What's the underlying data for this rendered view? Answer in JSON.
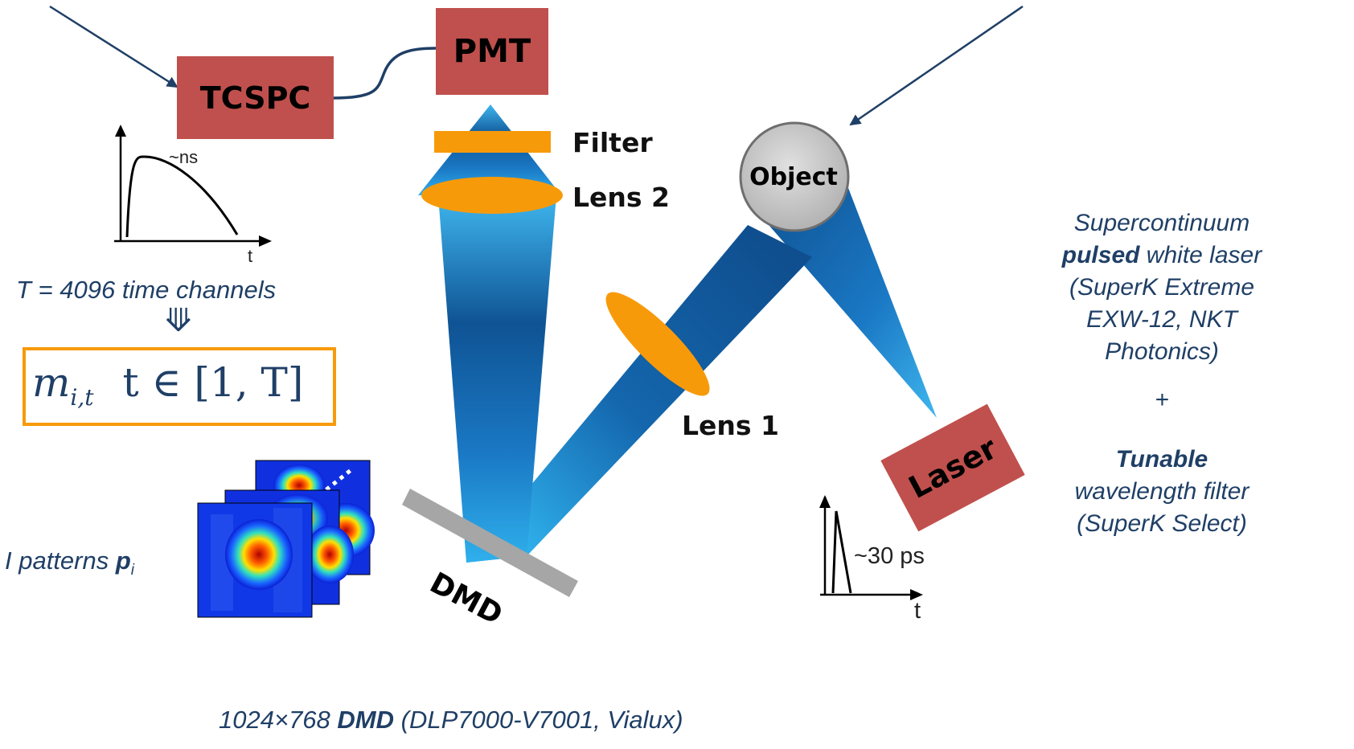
{
  "blocks": {
    "tcspc": "TCSPC",
    "pmt": "PMT",
    "object": "Object",
    "laser": "Laser",
    "dmd": "DMD"
  },
  "optics": {
    "filter": "Filter",
    "lens2": "Lens 2",
    "lens1": "Lens 1"
  },
  "detector_plot": {
    "peak_label": "~ns",
    "x_axis": "t"
  },
  "laser_plot": {
    "pulse_label": "~30 ps",
    "x_axis": "t"
  },
  "time_channels": "T = 4096 time channels",
  "arrow_symbol": "⟱",
  "measurement": {
    "m": "m",
    "sub": "i,t",
    "range": "t ∈ [1, T]"
  },
  "patterns": {
    "text": "I patterns ",
    "symbol": "p",
    "sub": "i"
  },
  "laser_desc": {
    "line1": "Supercontinuum",
    "line2_bold": "pulsed",
    "line2_rest": " white laser",
    "line3": "(SuperK Extreme",
    "line4": "EXW-12, NKT",
    "line5": "Photonics)",
    "plus": "+",
    "line6_bold": "Tunable",
    "line7": "wavelength filter",
    "line8": "(SuperK Select)"
  },
  "dmd_desc": {
    "prefix": "1024×768 ",
    "bold": "DMD",
    "suffix": " (DLP7000-V7001, Vialux)"
  },
  "colors": {
    "block_fill": "#c0504d",
    "optic_orange": "#f79a0a",
    "beam_light": "#2aa7e8",
    "beam_dark": "#0d4b8c",
    "annotation": "#1f3f66",
    "dmd_gray": "#a6a6a6"
  }
}
